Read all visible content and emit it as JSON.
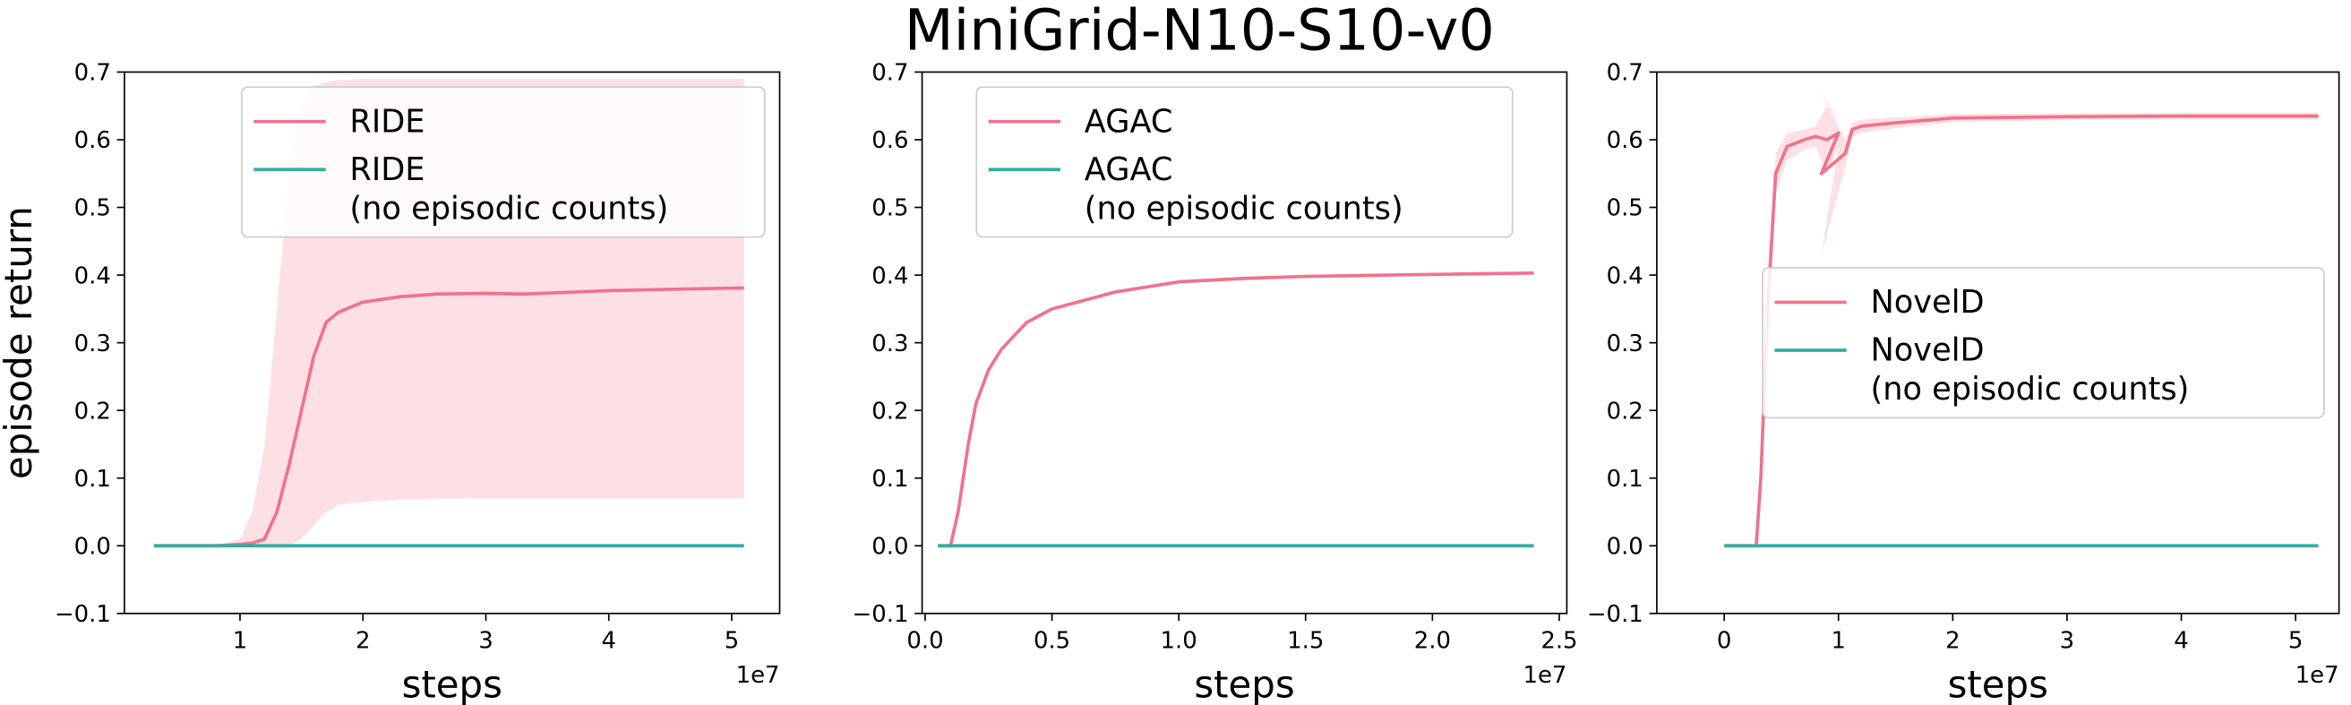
{
  "title": "MiniGrid-N10-S10-v0",
  "chart_data": [
    {
      "type": "line",
      "ylabel": "episode return",
      "xlabel": "steps",
      "x_offset_label": "1e7",
      "xlim": [
        0.06,
        5.39
      ],
      "ylim": [
        -0.1,
        0.7
      ],
      "xticks": [
        1,
        2,
        3,
        4,
        5
      ],
      "yticks": [
        {
          "value": -0.1,
          "label": "−0.1"
        },
        {
          "value": 0,
          "label": "0.0"
        },
        0.1,
        0.2,
        0.3,
        0.4,
        0.5,
        0.6,
        0.7
      ],
      "legend": "upper right",
      "series": [
        {
          "name": "RIDE",
          "color": "#f0728b",
          "band_color": "#fde0e6",
          "x": [
            0.3,
            0.8,
            1.0,
            1.1,
            1.2,
            1.3,
            1.4,
            1.5,
            1.6,
            1.7,
            1.8,
            2.0,
            2.3,
            2.6,
            3.0,
            3.3,
            3.6,
            4.0,
            4.5,
            5.1
          ],
          "values": [
            0,
            0,
            0.002,
            0.004,
            0.01,
            0.05,
            0.12,
            0.2,
            0.28,
            0.33,
            0.345,
            0.36,
            0.368,
            0.372,
            0.373,
            0.372,
            0.374,
            0.377,
            0.379,
            0.381
          ],
          "band_upper": [
            0,
            0,
            0.01,
            0.05,
            0.15,
            0.35,
            0.55,
            0.65,
            0.68,
            0.685,
            0.688,
            0.69,
            0.69,
            0.69,
            0.69,
            0.69,
            0.69,
            0.69,
            0.69,
            0.69
          ],
          "band_lower": [
            0,
            0,
            0,
            0,
            0,
            0,
            0,
            0.01,
            0.03,
            0.05,
            0.06,
            0.065,
            0.068,
            0.069,
            0.07,
            0.07,
            0.07,
            0.07,
            0.07,
            0.07
          ]
        },
        {
          "name": "RIDE\n(no episodic counts)",
          "color": "#36ada4",
          "x": [
            0.3,
            5.1
          ],
          "values": [
            0,
            0
          ]
        }
      ]
    },
    {
      "type": "line",
      "xlabel": "steps",
      "x_offset_label": "1e7",
      "xlim": [
        -0.012,
        2.53
      ],
      "ylim": [
        -0.1,
        0.7
      ],
      "xticks": [
        {
          "value": 0,
          "label": "0.0"
        },
        0.5,
        {
          "value": 1,
          "label": "1.0"
        },
        1.5,
        {
          "value": 2,
          "label": "2.0"
        },
        2.5
      ],
      "yticks": [
        {
          "value": -0.1,
          "label": "−0.1"
        },
        {
          "value": 0,
          "label": "0.0"
        },
        0.1,
        0.2,
        0.3,
        0.4,
        0.5,
        0.6,
        0.7
      ],
      "legend": "upper center",
      "series": [
        {
          "name": "AGAC",
          "color": "#f0728b",
          "x": [
            0.05,
            0.1,
            0.13,
            0.17,
            0.2,
            0.25,
            0.3,
            0.4,
            0.5,
            0.75,
            1.0,
            1.25,
            1.5,
            2.0,
            2.4
          ],
          "values": [
            0,
            0,
            0.05,
            0.15,
            0.21,
            0.26,
            0.29,
            0.33,
            0.35,
            0.375,
            0.39,
            0.395,
            0.398,
            0.401,
            0.403
          ]
        },
        {
          "name": "AGAC\n(no episodic counts)",
          "color": "#36ada4",
          "x": [
            0.05,
            2.4
          ],
          "values": [
            0,
            0
          ]
        }
      ]
    },
    {
      "type": "line",
      "xlabel": "steps",
      "x_offset_label": "1e7",
      "xlim": [
        -0.59,
        5.38
      ],
      "ylim": [
        -0.1,
        0.7
      ],
      "xticks": [
        0,
        1,
        2,
        3,
        4,
        5
      ],
      "yticks": [
        {
          "value": -0.1,
          "label": "−0.1"
        },
        {
          "value": 0,
          "label": "0.0"
        },
        0.1,
        0.2,
        0.3,
        0.4,
        0.5,
        0.6,
        0.7
      ],
      "legend": "center right",
      "series": [
        {
          "name": "NovelD",
          "color": "#f0728b",
          "band_color": "#fde0e6",
          "x": [
            0,
            0.28,
            0.32,
            0.38,
            0.45,
            0.55,
            0.7,
            0.8,
            0.9,
            1.0,
            0.85,
            1.06,
            1.12,
            1.2,
            1.5,
            2.0,
            3.0,
            4.0,
            5.2
          ],
          "values": [
            0,
            0,
            0.1,
            0.35,
            0.55,
            0.59,
            0.6,
            0.605,
            0.6,
            0.61,
            0.55,
            0.58,
            0.615,
            0.62,
            0.625,
            0.632,
            0.634,
            0.635,
            0.635
          ],
          "band_upper": [
            0,
            0,
            0.12,
            0.4,
            0.58,
            0.61,
            0.615,
            0.62,
            0.65,
            0.63,
            0.67,
            0.6,
            0.625,
            0.63,
            0.633,
            0.638,
            0.639,
            0.64,
            0.64
          ],
          "band_lower": [
            0,
            0,
            0.08,
            0.3,
            0.52,
            0.57,
            0.585,
            0.59,
            0.55,
            0.59,
            0.43,
            0.56,
            0.605,
            0.61,
            0.617,
            0.626,
            0.629,
            0.63,
            0.63
          ]
        },
        {
          "name": "NovelD\n(no episodic counts)",
          "color": "#36ada4",
          "x": [
            0,
            5.2
          ],
          "values": [
            0,
            0
          ]
        }
      ]
    }
  ]
}
